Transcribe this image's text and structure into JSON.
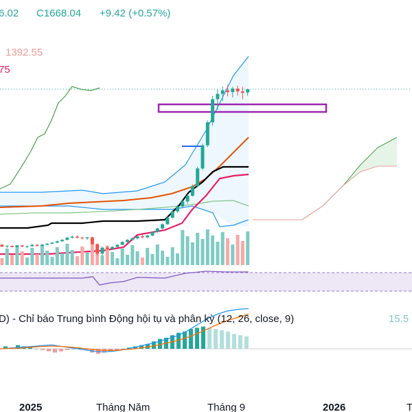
{
  "header": {
    "open_fragment": "6.02",
    "close_label": "C1668.04",
    "change_label": "+9.42 (+0.57%)",
    "indicator_value_1": "1392.55",
    "indicator_value_2": "75"
  },
  "macd": {
    "title": "D) - Chỉ báo Trung bình Động hội tụ và phân kỳ (12, 26, close, 9)",
    "value": "15.5"
  },
  "x_axis": {
    "labels": [
      "2025",
      "Tháng Năm",
      "Tháng 9",
      "2026",
      "T"
    ]
  },
  "colors": {
    "up": "#26a69a",
    "down": "#ef5350",
    "bb": "#2196f3",
    "rsi": "#7e57c2",
    "highlight_box": "#9c27b0",
    "ichimoku_green": "#43a047",
    "ichimoku_red": "#ef9a9a",
    "orange_ma": "#e65100",
    "black_line": "#000000",
    "crimson_line": "#e91e63"
  },
  "chart_data": {
    "type": "candlestick",
    "candles": [
      [
        1230,
        1232,
        1223,
        1225
      ],
      [
        1225,
        1229,
        1221,
        1227
      ],
      [
        1227,
        1228,
        1222,
        1224
      ],
      [
        1224,
        1229,
        1222,
        1228
      ],
      [
        1228,
        1230,
        1223,
        1225
      ],
      [
        1225,
        1228,
        1220,
        1226
      ],
      [
        1226,
        1232,
        1224,
        1230
      ],
      [
        1230,
        1231,
        1225,
        1227
      ],
      [
        1227,
        1232,
        1225,
        1230
      ],
      [
        1230,
        1235,
        1228,
        1233
      ],
      [
        1233,
        1238,
        1231,
        1236
      ],
      [
        1236,
        1242,
        1234,
        1240
      ],
      [
        1240,
        1246,
        1238,
        1244
      ],
      [
        1244,
        1252,
        1242,
        1250
      ],
      [
        1250,
        1256,
        1247,
        1253
      ],
      [
        1253,
        1256,
        1248,
        1250
      ],
      [
        1250,
        1253,
        1245,
        1248
      ],
      [
        1248,
        1252,
        1244,
        1251
      ],
      [
        1251,
        1253,
        1230,
        1232
      ],
      [
        1232,
        1234,
        1200,
        1205
      ],
      [
        1205,
        1225,
        1200,
        1222
      ],
      [
        1222,
        1228,
        1215,
        1218
      ],
      [
        1218,
        1226,
        1216,
        1224
      ],
      [
        1224,
        1232,
        1222,
        1230
      ],
      [
        1230,
        1240,
        1228,
        1238
      ],
      [
        1238,
        1246,
        1236,
        1244
      ],
      [
        1244,
        1250,
        1241,
        1248
      ],
      [
        1248,
        1256,
        1245,
        1254
      ],
      [
        1254,
        1258,
        1248,
        1251
      ],
      [
        1251,
        1258,
        1249,
        1256
      ],
      [
        1256,
        1268,
        1254,
        1266
      ],
      [
        1266,
        1278,
        1264,
        1276
      ],
      [
        1276,
        1290,
        1274,
        1288
      ],
      [
        1288,
        1310,
        1286,
        1306
      ],
      [
        1306,
        1328,
        1304,
        1324
      ],
      [
        1324,
        1342,
        1320,
        1338
      ],
      [
        1338,
        1356,
        1332,
        1352
      ],
      [
        1352,
        1372,
        1345,
        1368
      ],
      [
        1368,
        1400,
        1366,
        1395
      ],
      [
        1395,
        1450,
        1392,
        1445
      ],
      [
        1445,
        1515,
        1440,
        1510
      ],
      [
        1510,
        1580,
        1505,
        1575
      ],
      [
        1575,
        1650,
        1565,
        1640
      ],
      [
        1640,
        1668,
        1610,
        1655
      ],
      [
        1655,
        1676,
        1635,
        1665
      ],
      [
        1665,
        1680,
        1648,
        1660
      ],
      [
        1660,
        1675,
        1645,
        1670
      ],
      [
        1670,
        1678,
        1650,
        1662
      ],
      [
        1662,
        1675,
        1640,
        1658
      ],
      [
        1659,
        1670,
        1650,
        1668
      ]
    ],
    "macd_histogram": [
      2,
      1,
      3,
      2,
      1,
      0,
      -1,
      -2,
      -3,
      -2,
      -1,
      0,
      1,
      -1,
      -3,
      -4,
      -3,
      -2,
      -1,
      0,
      1,
      2,
      3,
      4,
      6,
      8,
      9,
      11,
      13,
      14,
      16,
      17,
      18,
      17,
      16,
      15,
      14,
      12,
      11,
      10
    ],
    "macd_line": [
      0,
      1,
      2,
      3,
      4,
      5,
      3,
      1,
      -1,
      -3,
      -4,
      -3,
      -1,
      2,
      5,
      8,
      12,
      16,
      22,
      30,
      38,
      44,
      48,
      50,
      51
    ],
    "signal_line": [
      0,
      0.5,
      1,
      2,
      3,
      3.5,
      3,
      2,
      0.5,
      -1,
      -2,
      -2,
      -1,
      0,
      2,
      4,
      7,
      10,
      14,
      19,
      25,
      31,
      36,
      40,
      44
    ]
  }
}
